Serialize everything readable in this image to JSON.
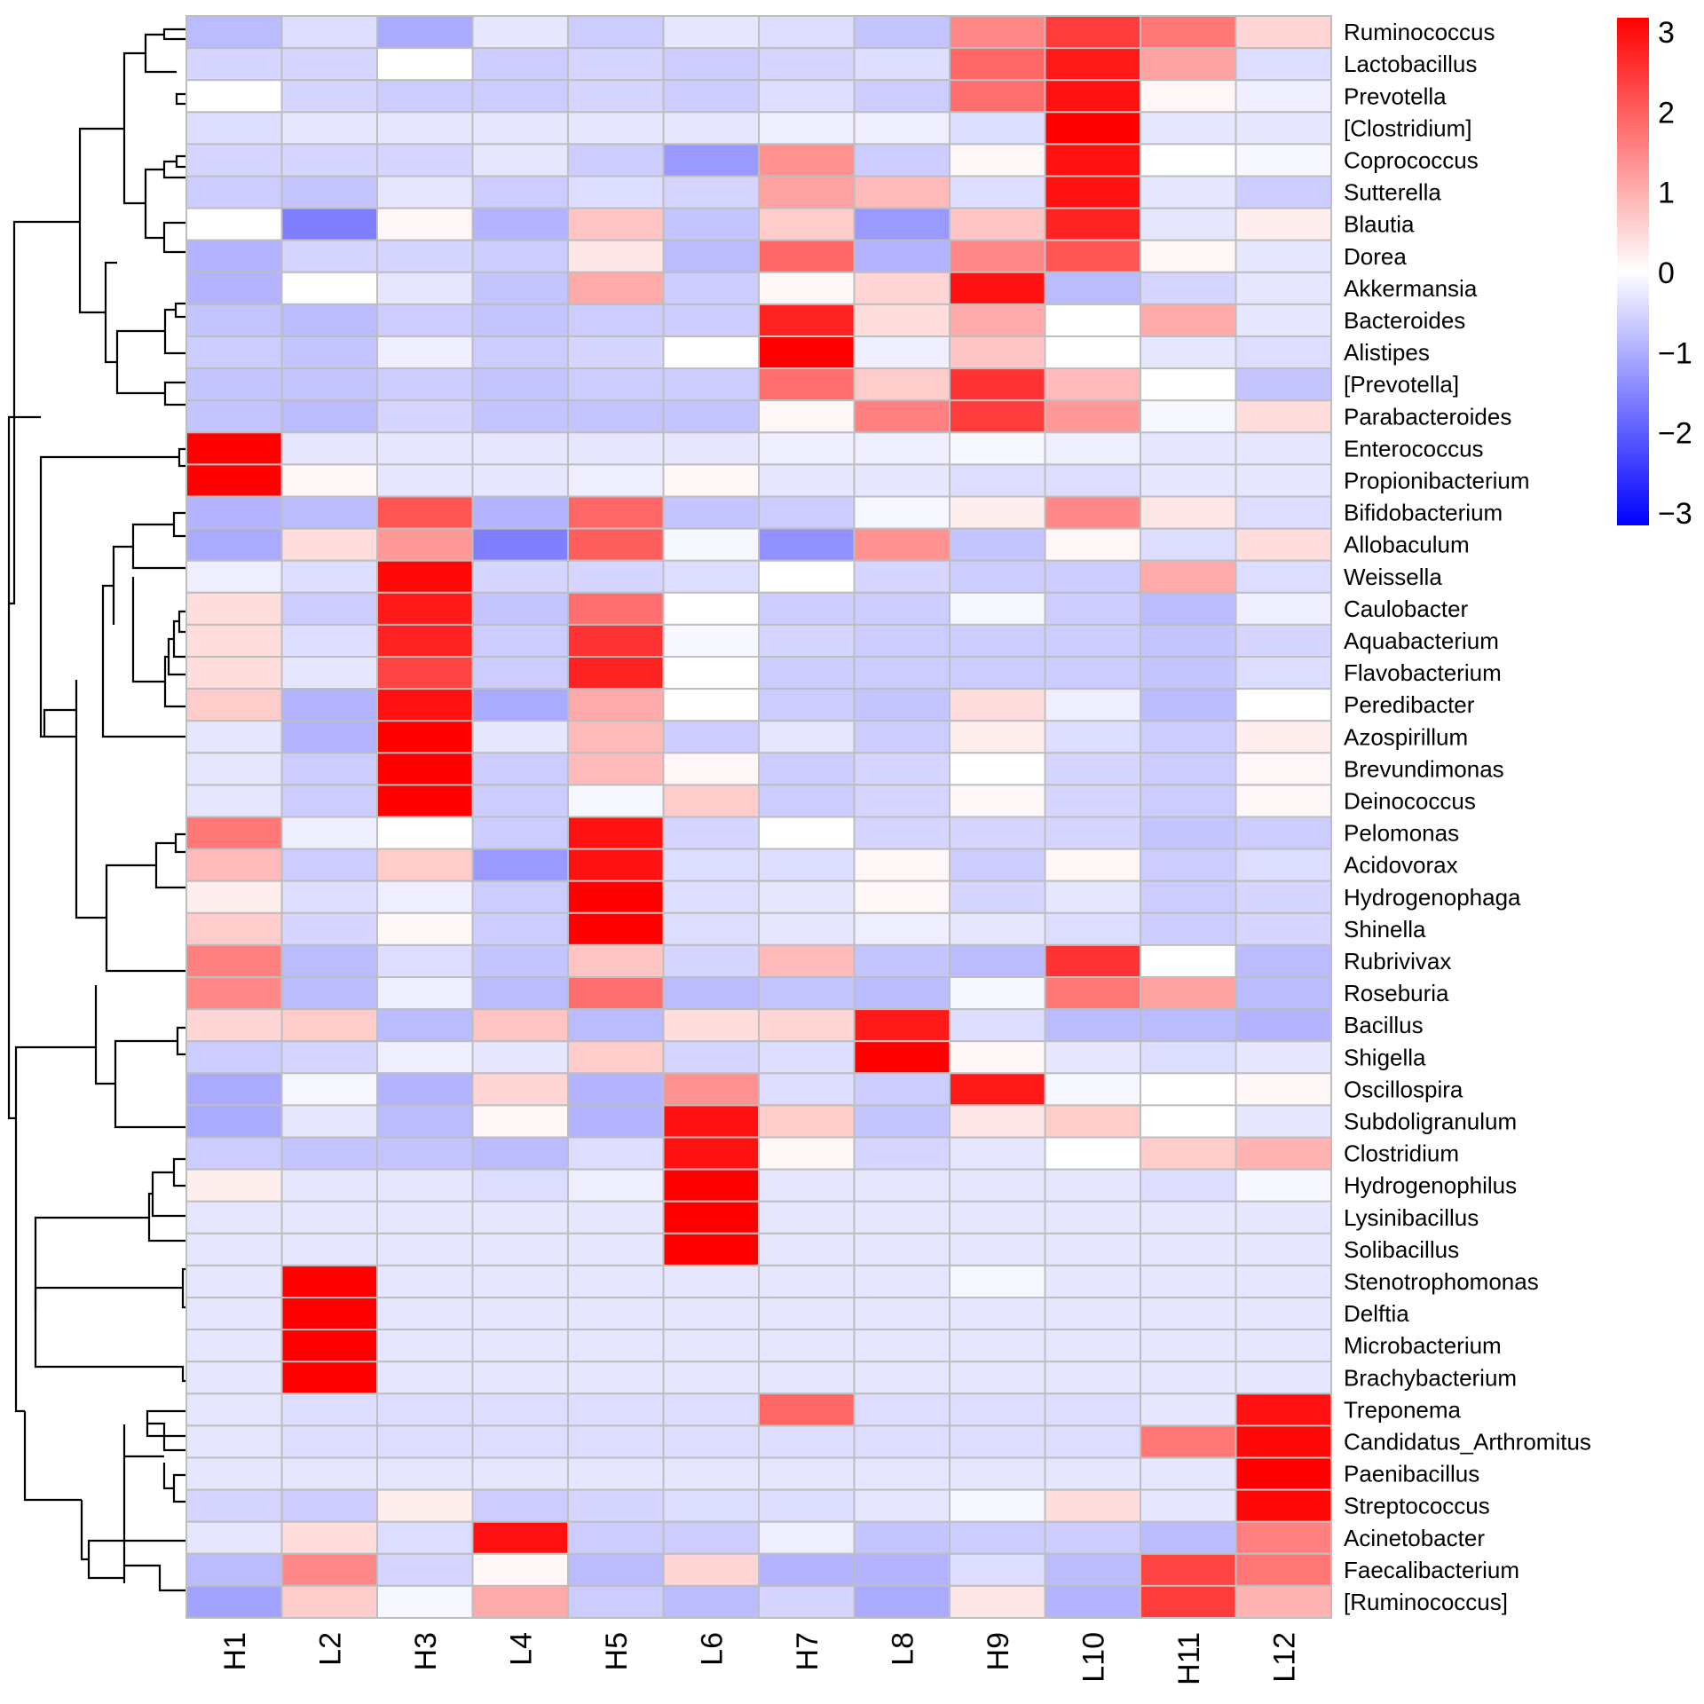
{
  "chart_data": {
    "type": "heatmap",
    "title": "",
    "columns": [
      "H1",
      "L2",
      "H3",
      "L4",
      "H5",
      "L6",
      "H7",
      "L8",
      "H9",
      "L10",
      "H11",
      "L12"
    ],
    "rows": [
      "Ruminococcus",
      "Lactobacillus",
      "Prevotella",
      "[Clostridium]",
      "Coprococcus",
      "Sutterella",
      "Blautia",
      "Dorea",
      "Akkermansia",
      "Bacteroides",
      "Alistipes",
      "[Prevotella]",
      "Parabacteroides",
      "Enterococcus",
      "Propionibacterium",
      "Bifidobacterium",
      "Allobaculum",
      "Weissella",
      "Caulobacter",
      "Aquabacterium",
      "Flavobacterium",
      "Peredibacter",
      "Azospirillum",
      "Brevundimonas",
      "Deinococcus",
      "Pelomonas",
      "Acidovorax",
      "Hydrogenophaga",
      "Shinella",
      "Rubrivivax",
      "Roseburia",
      "Bacillus",
      "Shigella",
      "Oscillospira",
      "Subdoligranulum",
      "Clostridium",
      "Hydrogenophilus",
      "Lysinibacillus",
      "Solibacillus",
      "Stenotrophomonas",
      "Delftia",
      "Microbacterium",
      "Brachybacterium",
      "Treponema",
      "Candidatus_Arthromitus",
      "Paenibacillus",
      "Streptococcus",
      "Acinetobacter",
      "Faecalibacterium",
      "[Ruminococcus]"
    ],
    "values": [
      [
        -0.8,
        -0.4,
        -1.0,
        -0.3,
        -0.6,
        -0.3,
        -0.4,
        -0.7,
        1.4,
        2.3,
        1.6,
        0.5
      ],
      [
        -0.5,
        -0.5,
        0.0,
        -0.6,
        -0.5,
        -0.6,
        -0.5,
        -0.4,
        1.8,
        2.7,
        1.1,
        -0.4
      ],
      [
        0.0,
        -0.5,
        -0.6,
        -0.6,
        -0.5,
        -0.6,
        -0.4,
        -0.6,
        1.7,
        2.8,
        0.1,
        -0.2
      ],
      [
        -0.4,
        -0.3,
        -0.3,
        -0.3,
        -0.3,
        -0.3,
        -0.2,
        -0.2,
        -0.4,
        3.0,
        -0.3,
        -0.3
      ],
      [
        -0.5,
        -0.5,
        -0.5,
        -0.3,
        -0.6,
        -1.2,
        1.3,
        -0.6,
        0.1,
        2.8,
        0.0,
        -0.1
      ],
      [
        -0.6,
        -0.7,
        -0.3,
        -0.6,
        -0.4,
        -0.5,
        1.1,
        0.8,
        -0.4,
        2.8,
        -0.3,
        -0.6
      ],
      [
        0.0,
        -1.5,
        0.1,
        -0.9,
        0.7,
        -0.7,
        0.6,
        -1.2,
        0.7,
        2.6,
        -0.3,
        0.2
      ],
      [
        -0.9,
        -0.5,
        -0.5,
        -0.6,
        0.3,
        -0.8,
        1.8,
        -0.9,
        1.4,
        2.0,
        0.1,
        -0.3
      ],
      [
        -0.9,
        0.0,
        -0.3,
        -0.7,
        1.0,
        -0.6,
        0.1,
        0.5,
        2.8,
        -0.8,
        -0.5,
        -0.3
      ],
      [
        -0.7,
        -0.8,
        -0.6,
        -0.7,
        -0.6,
        -0.6,
        2.6,
        0.4,
        1.0,
        0.0,
        1.0,
        -0.3
      ],
      [
        -0.6,
        -0.7,
        -0.2,
        -0.6,
        -0.5,
        0.0,
        3.0,
        -0.2,
        0.7,
        0.0,
        -0.3,
        -0.4
      ],
      [
        -0.7,
        -0.7,
        -0.6,
        -0.7,
        -0.6,
        -0.6,
        1.7,
        0.6,
        2.4,
        0.8,
        0.0,
        -0.7
      ],
      [
        -0.7,
        -0.8,
        -0.5,
        -0.7,
        -0.7,
        -0.7,
        0.1,
        1.5,
        2.3,
        1.2,
        -0.1,
        0.4
      ],
      [
        3.0,
        -0.3,
        -0.3,
        -0.3,
        -0.3,
        -0.3,
        -0.2,
        -0.2,
        -0.1,
        -0.2,
        -0.3,
        -0.3
      ],
      [
        3.0,
        0.1,
        -0.3,
        -0.3,
        -0.2,
        0.1,
        -0.3,
        -0.3,
        -0.4,
        -0.4,
        -0.3,
        -0.3
      ],
      [
        -0.9,
        -0.8,
        2.0,
        -0.9,
        1.8,
        -0.7,
        -0.6,
        -0.1,
        0.2,
        1.4,
        0.3,
        -0.4
      ],
      [
        -1.0,
        0.4,
        1.2,
        -1.5,
        1.9,
        -0.1,
        -1.3,
        1.3,
        -0.7,
        0.1,
        -0.4,
        0.4
      ],
      [
        -0.2,
        -0.4,
        2.9,
        -0.5,
        -0.5,
        -0.4,
        0.0,
        -0.5,
        -0.6,
        -0.6,
        1.0,
        -0.4
      ],
      [
        0.4,
        -0.6,
        2.7,
        -0.7,
        1.7,
        0.0,
        -0.6,
        -0.6,
        -0.1,
        -0.6,
        -0.8,
        -0.2
      ],
      [
        0.4,
        -0.4,
        2.6,
        -0.6,
        2.4,
        -0.1,
        -0.5,
        -0.6,
        -0.6,
        -0.6,
        -0.7,
        -0.5
      ],
      [
        0.4,
        -0.3,
        2.2,
        -0.6,
        2.6,
        0.0,
        -0.6,
        -0.6,
        -0.6,
        -0.6,
        -0.7,
        -0.4
      ],
      [
        0.6,
        -0.9,
        2.8,
        -1.0,
        1.0,
        0.0,
        -0.6,
        -0.7,
        0.4,
        -0.2,
        -0.8,
        0.0
      ],
      [
        -0.3,
        -0.9,
        3.0,
        -0.3,
        0.8,
        -0.6,
        -0.3,
        -0.6,
        0.2,
        -0.4,
        -0.6,
        0.2
      ],
      [
        -0.3,
        -0.6,
        3.0,
        -0.6,
        0.8,
        0.1,
        -0.6,
        -0.5,
        0.0,
        -0.5,
        -0.6,
        0.1
      ],
      [
        -0.3,
        -0.6,
        3.0,
        -0.6,
        -0.1,
        0.6,
        -0.6,
        -0.5,
        0.1,
        -0.5,
        -0.6,
        0.1
      ],
      [
        1.6,
        -0.2,
        0.0,
        -0.6,
        2.8,
        -0.5,
        0.0,
        -0.5,
        -0.5,
        -0.5,
        -0.7,
        -0.6
      ],
      [
        0.8,
        -0.6,
        0.6,
        -1.2,
        2.8,
        -0.4,
        -0.4,
        0.1,
        -0.6,
        0.1,
        -0.6,
        -0.4
      ],
      [
        0.2,
        -0.4,
        -0.2,
        -0.6,
        3.0,
        -0.4,
        -0.3,
        0.1,
        -0.5,
        -0.3,
        -0.6,
        -0.5
      ],
      [
        0.6,
        -0.5,
        0.1,
        -0.6,
        3.0,
        -0.4,
        -0.3,
        -0.2,
        -0.3,
        -0.4,
        -0.6,
        -0.5
      ],
      [
        1.5,
        -0.8,
        -0.4,
        -0.7,
        0.7,
        -0.5,
        0.8,
        -0.7,
        -0.8,
        2.4,
        0.0,
        -0.8
      ],
      [
        1.4,
        -0.8,
        -0.2,
        -0.8,
        1.7,
        -0.8,
        -0.7,
        -0.8,
        -0.1,
        1.6,
        1.1,
        -0.8
      ],
      [
        0.5,
        0.6,
        -0.8,
        0.7,
        -0.8,
        0.4,
        0.5,
        2.7,
        -0.4,
        -0.8,
        -0.8,
        -0.9
      ],
      [
        -0.6,
        -0.5,
        -0.2,
        -0.3,
        0.6,
        -0.5,
        -0.4,
        3.0,
        0.1,
        -0.3,
        -0.4,
        -0.3
      ],
      [
        -1.0,
        -0.1,
        -0.9,
        0.5,
        -0.9,
        1.3,
        -0.4,
        -0.6,
        2.7,
        -0.1,
        0.0,
        0.1
      ],
      [
        -1.0,
        -0.3,
        -0.8,
        0.1,
        -0.9,
        2.8,
        0.6,
        -0.7,
        0.3,
        0.6,
        0.0,
        -0.3
      ],
      [
        -0.6,
        -0.7,
        -0.7,
        -0.8,
        -0.4,
        2.8,
        0.1,
        -0.5,
        -0.3,
        0.0,
        0.6,
        0.9
      ],
      [
        0.2,
        -0.3,
        -0.3,
        -0.4,
        -0.2,
        3.0,
        -0.3,
        -0.3,
        -0.3,
        -0.3,
        -0.4,
        -0.1
      ],
      [
        -0.3,
        -0.3,
        -0.3,
        -0.3,
        -0.3,
        3.0,
        -0.3,
        -0.3,
        -0.3,
        -0.3,
        -0.3,
        -0.3
      ],
      [
        -0.3,
        -0.3,
        -0.3,
        -0.3,
        -0.3,
        3.0,
        -0.3,
        -0.3,
        -0.3,
        -0.3,
        -0.3,
        -0.3
      ],
      [
        -0.3,
        3.0,
        -0.3,
        -0.3,
        -0.3,
        -0.3,
        -0.3,
        -0.3,
        -0.1,
        -0.3,
        -0.3,
        -0.3
      ],
      [
        -0.3,
        3.0,
        -0.3,
        -0.3,
        -0.3,
        -0.3,
        -0.3,
        -0.3,
        -0.3,
        -0.3,
        -0.3,
        -0.3
      ],
      [
        -0.3,
        3.0,
        -0.3,
        -0.3,
        -0.3,
        -0.3,
        -0.3,
        -0.3,
        -0.3,
        -0.3,
        -0.3,
        -0.3
      ],
      [
        -0.3,
        3.0,
        -0.3,
        -0.3,
        -0.3,
        -0.3,
        -0.3,
        -0.3,
        -0.3,
        -0.3,
        -0.3,
        -0.3
      ],
      [
        -0.3,
        -0.4,
        -0.4,
        -0.4,
        -0.4,
        -0.4,
        1.8,
        -0.4,
        -0.4,
        -0.4,
        -0.3,
        2.8
      ],
      [
        -0.3,
        -0.4,
        -0.4,
        -0.4,
        -0.4,
        -0.4,
        -0.4,
        -0.4,
        -0.4,
        -0.4,
        1.6,
        2.9
      ],
      [
        -0.3,
        -0.3,
        -0.3,
        -0.3,
        -0.3,
        -0.3,
        -0.3,
        -0.3,
        -0.3,
        -0.3,
        -0.3,
        3.0
      ],
      [
        -0.5,
        -0.6,
        0.2,
        -0.6,
        -0.5,
        -0.4,
        -0.4,
        -0.3,
        -0.1,
        0.4,
        -0.3,
        2.9
      ],
      [
        -0.3,
        0.4,
        -0.4,
        2.8,
        -0.6,
        -0.6,
        -0.2,
        -0.7,
        -0.6,
        -0.6,
        -0.8,
        1.5
      ],
      [
        -0.8,
        1.4,
        -0.5,
        0.1,
        -0.8,
        0.5,
        -0.9,
        -0.9,
        -0.4,
        -0.8,
        2.2,
        1.6
      ],
      [
        -1.1,
        0.6,
        -0.1,
        1.0,
        -0.6,
        -0.8,
        -0.5,
        -1.0,
        0.3,
        -0.9,
        2.3,
        0.9
      ]
    ],
    "color_scale": {
      "min": -3,
      "max": 3,
      "low_color": "#0000ff",
      "mid_color": "#ffffff",
      "high_color": "#ff0000"
    },
    "colorbar_ticks": [
      "3",
      "2",
      "1",
      "0",
      "−1",
      "−2",
      "−3"
    ],
    "colorbar_tick_values": [
      3,
      2,
      1,
      0,
      -1,
      -2,
      -3
    ],
    "xlabel": "",
    "ylabel": "",
    "grid_color": "#bebebe",
    "legend_position": "top-right"
  }
}
